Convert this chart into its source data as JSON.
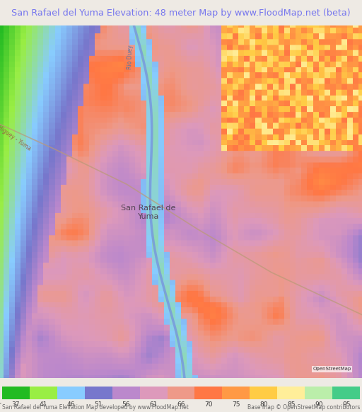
{
  "title": "San Rafael del Yuma Elevation: 48 meter Map by www.FloodMap.net (beta)",
  "title_color": "#7777ee",
  "title_bg": "#eeeae4",
  "colorbar_values": [
    37,
    41,
    46,
    51,
    56,
    61,
    66,
    70,
    75,
    80,
    85,
    90,
    95
  ],
  "colorbar_colors": [
    "#22bb22",
    "#99ee44",
    "#88ccff",
    "#7777cc",
    "#bb88cc",
    "#dd99bb",
    "#ee9988",
    "#ff7744",
    "#ff9944",
    "#ffcc44",
    "#ffee99",
    "#bbeeaa",
    "#44cc88"
  ],
  "footer_left": "San Rafael del Yuma Elevation Map developed by www.FloodMap.net",
  "footer_right": "Base map © OpenStreetMap contributors",
  "footer_color": "#666666",
  "label_meter": "meter",
  "colorbar_label_color": "#333333",
  "map_base_elev": 62.0,
  "river_color": "#7799dd",
  "road_color": "#bb9977"
}
